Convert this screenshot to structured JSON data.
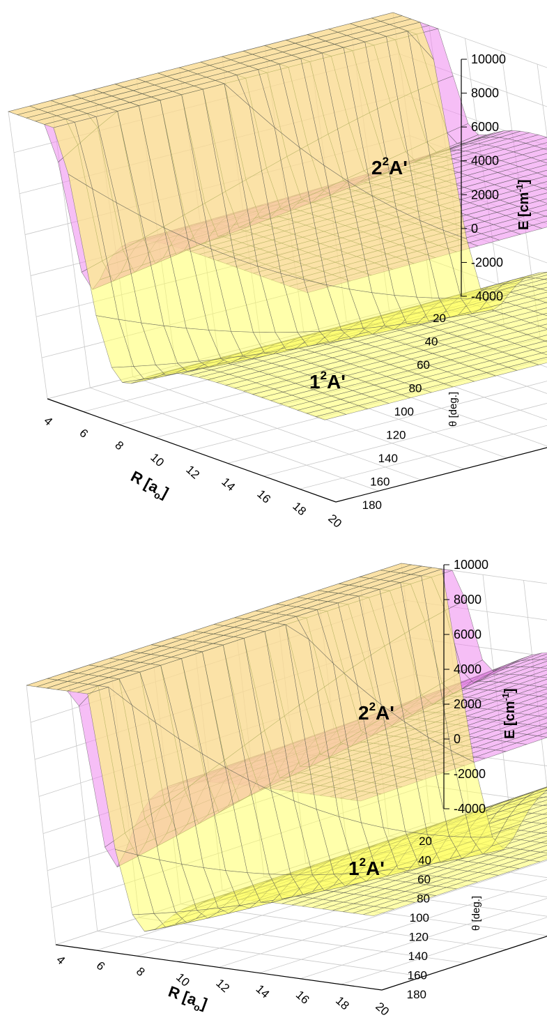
{
  "chart_data": [
    {
      "type": "surface3d",
      "panel": "top",
      "z_axis": {
        "label_main": "E [cm",
        "label_sup": "-1",
        "label_tail": "]",
        "ticks": [
          "10000",
          "8000",
          "6000",
          "4000",
          "2000",
          "0",
          "-2000",
          "-4000"
        ],
        "range": [
          -4000,
          10000
        ]
      },
      "x_axis": {
        "label_main": "R [a",
        "label_sub": "o",
        "label_tail": "]",
        "ticks": [
          "4",
          "6",
          "8",
          "10",
          "12",
          "14",
          "16",
          "18",
          "20"
        ],
        "range": [
          4,
          20
        ]
      },
      "y_axis": {
        "label": "θ [deg.]",
        "ticks": [
          "20",
          "40",
          "60",
          "80",
          "100",
          "120",
          "140",
          "160",
          "180"
        ],
        "range": [
          0,
          180
        ]
      },
      "series": [
        {
          "name_main": "2",
          "name_sup": "2",
          "name_tail": "A'",
          "color": "#ee88ee"
        },
        {
          "name_main": "1",
          "name_sup": "2",
          "name_tail": "A'",
          "color": "#ffff66"
        }
      ],
      "grid": true
    },
    {
      "type": "surface3d",
      "panel": "bottom",
      "z_axis": {
        "label_main": "E [cm",
        "label_sup": "-1",
        "label_tail": "]",
        "ticks": [
          "10000",
          "8000",
          "6000",
          "4000",
          "2000",
          "0",
          "-2000",
          "-4000"
        ],
        "range": [
          -4000,
          10000
        ]
      },
      "x_axis": {
        "label_main": "R [a",
        "label_sub": "o",
        "label_tail": "]",
        "ticks": [
          "4",
          "6",
          "8",
          "10",
          "12",
          "14",
          "16",
          "18",
          "20"
        ],
        "range": [
          4,
          20
        ]
      },
      "y_axis": {
        "label": "θ [deg.]",
        "ticks": [
          "20",
          "40",
          "60",
          "80",
          "100",
          "120",
          "140",
          "160",
          "180"
        ],
        "range": [
          0,
          180
        ]
      },
      "series": [
        {
          "name_main": "2",
          "name_sup": "2",
          "name_tail": "A'",
          "color": "#ee88ee"
        },
        {
          "name_main": "1",
          "name_sup": "2",
          "name_tail": "A'",
          "color": "#ffff66"
        }
      ],
      "grid": true
    }
  ]
}
